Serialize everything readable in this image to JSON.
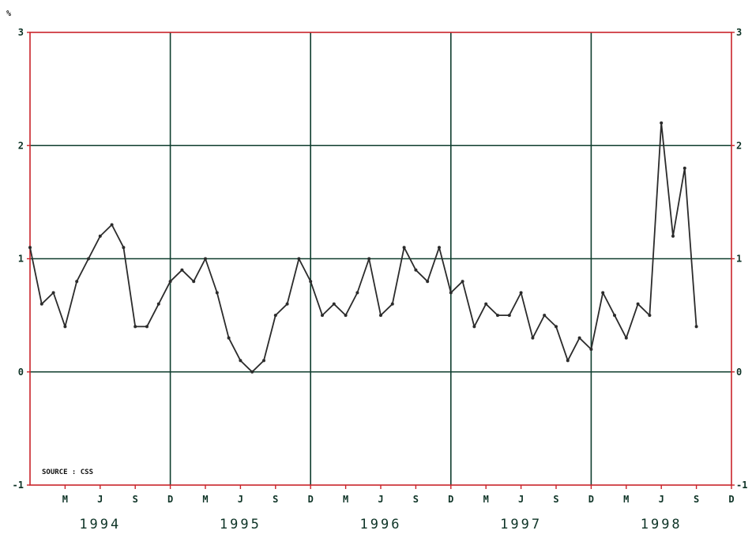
{
  "chart_data": {
    "type": "line",
    "title": "",
    "xlabel": "",
    "ylabel": "",
    "unit_label": "%",
    "source": "SOURCE : CSS",
    "ylim": [
      -1,
      3
    ],
    "yticks": [
      -1,
      0,
      1,
      2,
      3
    ],
    "ytick_labels": [
      "-1",
      "0",
      "1",
      "2",
      "3"
    ],
    "xlim": [
      "1993-12",
      "1998-12"
    ],
    "grid": true,
    "legend": "none",
    "colors": {
      "frame": "#c9232a",
      "grid": "#0f3d2e",
      "line": "#2b2b2b"
    },
    "month_ticks": [
      {
        "date": "1994-03",
        "label": "M"
      },
      {
        "date": "1994-06",
        "label": "J"
      },
      {
        "date": "1994-09",
        "label": "S"
      },
      {
        "date": "1994-12",
        "label": "D"
      },
      {
        "date": "1995-03",
        "label": "M"
      },
      {
        "date": "1995-06",
        "label": "J"
      },
      {
        "date": "1995-09",
        "label": "S"
      },
      {
        "date": "1995-12",
        "label": "D"
      },
      {
        "date": "1996-03",
        "label": "M"
      },
      {
        "date": "1996-06",
        "label": "J"
      },
      {
        "date": "1996-09",
        "label": "S"
      },
      {
        "date": "1996-12",
        "label": "D"
      },
      {
        "date": "1997-03",
        "label": "M"
      },
      {
        "date": "1997-06",
        "label": "J"
      },
      {
        "date": "1997-09",
        "label": "S"
      },
      {
        "date": "1997-12",
        "label": "D"
      },
      {
        "date": "1998-03",
        "label": "M"
      },
      {
        "date": "1998-06",
        "label": "J"
      },
      {
        "date": "1998-09",
        "label": "S"
      },
      {
        "date": "1998-12",
        "label": "D"
      }
    ],
    "year_labels": [
      {
        "label": "1994",
        "center": "1994-06"
      },
      {
        "label": "1995",
        "center": "1995-06"
      },
      {
        "label": "1996",
        "center": "1996-06"
      },
      {
        "label": "1997",
        "center": "1997-06"
      },
      {
        "label": "1998",
        "center": "1998-06"
      }
    ],
    "series": [
      {
        "x": [
          "1993-12",
          "1994-01",
          "1994-02",
          "1994-03",
          "1994-04",
          "1994-05",
          "1994-06",
          "1994-07",
          "1994-08",
          "1994-09",
          "1994-10",
          "1994-11",
          "1994-12",
          "1995-01",
          "1995-02",
          "1995-03",
          "1995-04",
          "1995-05",
          "1995-06",
          "1995-07",
          "1995-08",
          "1995-09",
          "1995-10",
          "1995-11",
          "1995-12",
          "1996-01",
          "1996-02",
          "1996-03",
          "1996-04",
          "1996-05",
          "1996-06",
          "1996-07",
          "1996-08",
          "1996-09",
          "1996-10",
          "1996-11",
          "1996-12",
          "1997-01",
          "1997-02",
          "1997-03",
          "1997-04",
          "1997-05",
          "1997-06",
          "1997-07",
          "1997-08",
          "1997-09",
          "1997-10",
          "1997-11",
          "1997-12",
          "1998-01",
          "1998-02",
          "1998-03",
          "1998-04",
          "1998-05",
          "1998-06",
          "1998-07",
          "1998-08",
          "1998-09",
          "1998-10"
        ],
        "values": [
          1.1,
          0.6,
          0.7,
          0.4,
          0.8,
          1.0,
          1.2,
          1.3,
          1.1,
          0.4,
          0.4,
          0.6,
          0.8,
          0.9,
          0.8,
          1.0,
          0.7,
          0.3,
          0.1,
          0.0,
          0.1,
          0.5,
          0.6,
          1.0,
          0.8,
          0.5,
          0.6,
          0.5,
          0.7,
          1.0,
          0.5,
          0.6,
          1.1,
          0.9,
          0.8,
          1.1,
          0.7,
          0.8,
          0.4,
          0.6,
          0.5,
          0.5,
          0.7,
          0.3,
          0.5,
          0.4,
          0.1,
          0.3,
          0.2,
          0.7,
          0.5,
          0.3,
          0.6,
          0.5,
          2.2,
          1.2,
          1.8,
          0.4,
          null
        ]
      }
    ]
  }
}
